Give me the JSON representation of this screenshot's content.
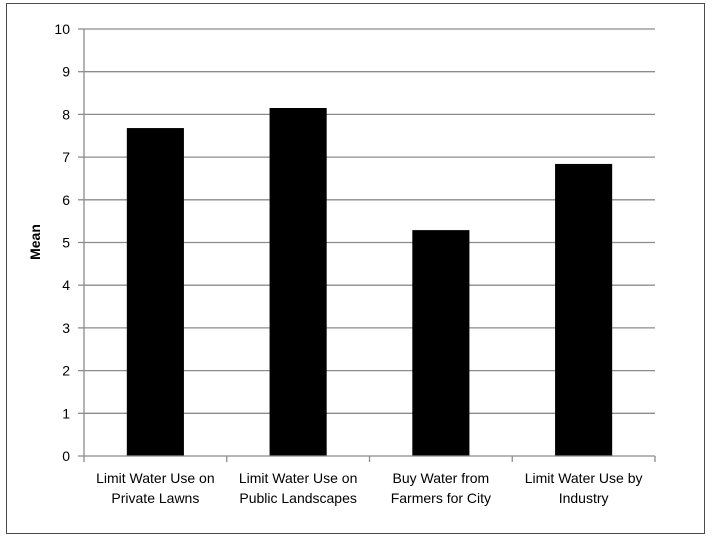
{
  "chart_data": {
    "type": "bar",
    "title": "",
    "xlabel": "",
    "ylabel": "Mean",
    "ylim": [
      0,
      10
    ],
    "yticks": [
      "0",
      "1",
      "2",
      "3",
      "4",
      "5",
      "6",
      "7",
      "8",
      "9",
      "10"
    ],
    "grid": true,
    "legend": "none",
    "bar_color": "#000000",
    "categories": [
      [
        "Limit Water Use on",
        "Private Lawns"
      ],
      [
        "Limit Water Use on",
        "Public Landscapes"
      ],
      [
        "Buy Water from",
        "Farmers for City"
      ],
      [
        "Limit Water Use by",
        "Industry"
      ]
    ],
    "values": [
      7.68,
      8.15,
      5.29,
      6.84
    ]
  }
}
